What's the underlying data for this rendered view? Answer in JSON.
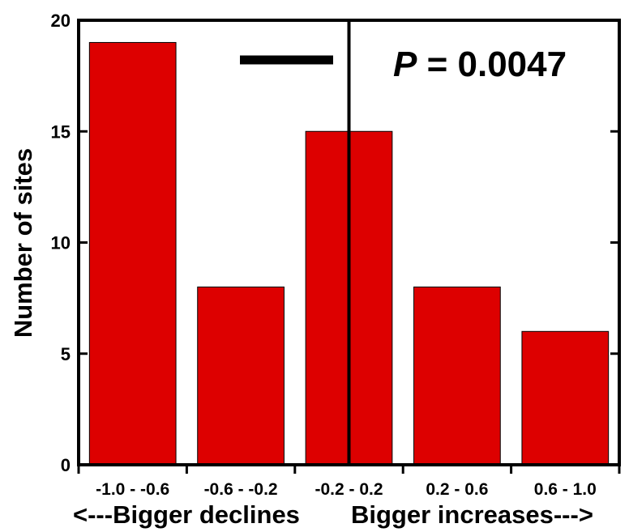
{
  "chart_data": {
    "type": "bar",
    "categories": [
      "-1.0 - -0.6",
      "-0.6 - -0.2",
      "-0.2 - 0.2",
      "0.2 - 0.6",
      "0.6 - 1.0"
    ],
    "values": [
      19,
      8,
      15,
      8,
      6
    ],
    "ylabel": "Number of sites",
    "xlabel_left": "<---Bigger declines",
    "xlabel_right": "Bigger increases--->",
    "ylim": [
      0,
      20
    ],
    "yticks": [
      0,
      5,
      10,
      15,
      20
    ],
    "grid": false,
    "bar_color": "#dd0000",
    "annotation": {
      "p_letter": "P",
      "p_value": " = 0.0047"
    },
    "vline_at": "0.0"
  }
}
